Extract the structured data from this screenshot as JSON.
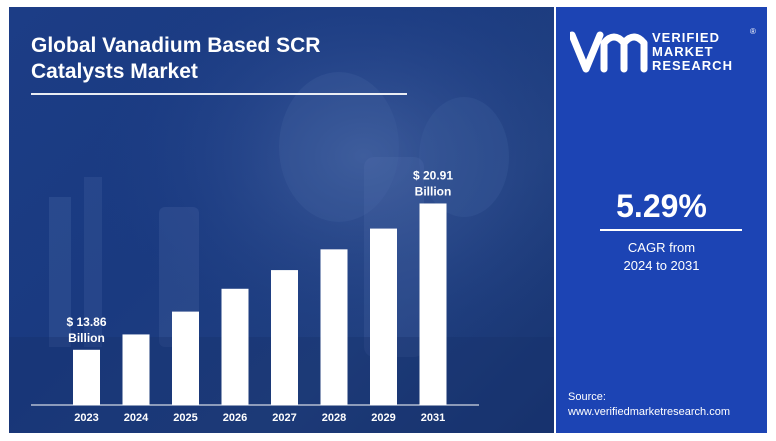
{
  "header": {
    "title_line1": "Global Vanadium Based SCR",
    "title_line2": "Catalysts Market"
  },
  "brand": {
    "line1": "VERIFIED",
    "line2": "MARKET",
    "line3": "RESEARCH",
    "registered": "®"
  },
  "cagr": {
    "value": "5.29%",
    "label_line1": "CAGR from",
    "label_line2": "2024 to 2031"
  },
  "source": {
    "label": "Source:",
    "url": "www.verifiedmarketresearch.com"
  },
  "colors": {
    "accent": "#1c44b4",
    "bars": "#ffffff",
    "background": "#1c3d86"
  },
  "chart_data": {
    "type": "bar",
    "categories": [
      "2023",
      "2024",
      "2025",
      "2026",
      "2027",
      "2028",
      "2029",
      "2031"
    ],
    "values": [
      13.86,
      14.6,
      15.7,
      16.8,
      17.7,
      18.7,
      19.7,
      20.91
    ],
    "ylim": [
      11.2,
      21.8
    ],
    "annotations": [
      {
        "index": 0,
        "line1": "$ 13.86",
        "line2": "Billion"
      },
      {
        "index": 7,
        "line1": "$ 20.91",
        "line2": "Billion"
      }
    ],
    "grid": false,
    "legend": "none"
  }
}
